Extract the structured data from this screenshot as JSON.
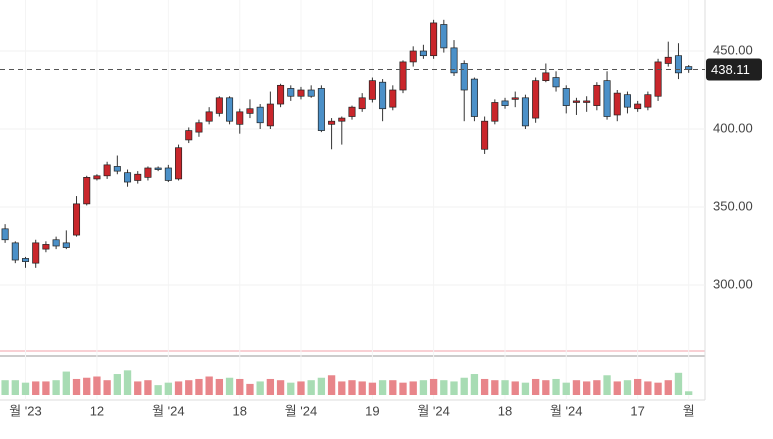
{
  "chart_data": {
    "type": "candlestick",
    "x": [
      0,
      1,
      2,
      3,
      4,
      5,
      6,
      7,
      8,
      9,
      10,
      11,
      12,
      13,
      14,
      15,
      16,
      17,
      18,
      19,
      20,
      21,
      22,
      23,
      24,
      25,
      26,
      27,
      28,
      29,
      30,
      31,
      32,
      33,
      34,
      35,
      36,
      37,
      38,
      39,
      40,
      41,
      42,
      43,
      44,
      45,
      46,
      47,
      48,
      49,
      50,
      51,
      52,
      53,
      54,
      55,
      56,
      57,
      58,
      59,
      60,
      61,
      62,
      63,
      64,
      65,
      66,
      67
    ],
    "open": [
      336,
      327,
      317,
      314,
      323,
      329,
      327,
      332,
      352,
      368,
      370,
      376,
      372,
      367,
      369,
      375,
      375,
      368,
      393,
      398,
      405,
      410,
      420,
      403,
      410,
      414,
      402,
      416,
      426,
      421,
      425,
      426,
      403,
      405,
      408,
      413,
      419,
      430,
      414,
      425,
      443,
      450,
      447,
      467,
      452,
      442,
      432,
      387,
      405,
      418,
      419,
      420,
      407,
      431,
      433,
      426,
      417,
      417,
      415,
      431,
      409,
      422,
      413,
      414,
      421,
      442,
      447,
      440
    ],
    "high": [
      339,
      328,
      318,
      329,
      328,
      331,
      335,
      357,
      370,
      371,
      379,
      383,
      374,
      373,
      376,
      376,
      377,
      390,
      401,
      406,
      414,
      421,
      421,
      413,
      419,
      416,
      424,
      429,
      428,
      427,
      428,
      428,
      407,
      408,
      415,
      423,
      433,
      432,
      428,
      444,
      453,
      454,
      470,
      470,
      457,
      444,
      433,
      408,
      419,
      420,
      424,
      422,
      433,
      442,
      437,
      428,
      420,
      421,
      430,
      437,
      425,
      424,
      418,
      424,
      445,
      456,
      455,
      441
    ],
    "low": [
      327,
      314,
      311,
      311,
      321,
      323,
      323,
      331,
      351,
      367,
      368,
      371,
      363,
      365,
      367,
      373,
      366,
      367,
      391,
      395,
      403,
      408,
      403,
      397,
      407,
      400,
      400,
      414,
      418,
      419,
      420,
      398,
      387,
      390,
      406,
      411,
      417,
      405,
      412,
      423,
      440,
      445,
      445,
      449,
      434,
      405,
      405,
      384,
      403,
      413,
      414,
      400,
      404,
      430,
      424,
      410,
      409,
      411,
      412,
      406,
      405,
      410,
      411,
      412,
      418,
      440,
      432,
      436
    ],
    "close": [
      329,
      316,
      315,
      327,
      326,
      325,
      324,
      352,
      369,
      370,
      377,
      373,
      366,
      371,
      375,
      374,
      367,
      388,
      399,
      404,
      411,
      420,
      405,
      411,
      413,
      404,
      416,
      428,
      421,
      425,
      421,
      399,
      405,
      407,
      414,
      420,
      431,
      413,
      425,
      443,
      450,
      447,
      468,
      452,
      436,
      425,
      408,
      405,
      417,
      415,
      420,
      402,
      431,
      436,
      427,
      415,
      418,
      418,
      428,
      408,
      423,
      414,
      416,
      422,
      443,
      446,
      436,
      438.11
    ],
    "volume": [
      12,
      12,
      10,
      11,
      11,
      12,
      19,
      13,
      14,
      15,
      12,
      17,
      20,
      11,
      12,
      8,
      10,
      11,
      12,
      13,
      15,
      13,
      14,
      13,
      9,
      11,
      13,
      12,
      10,
      11,
      12,
      14,
      16,
      11,
      12,
      11,
      10,
      12,
      12,
      10,
      11,
      12,
      13,
      12,
      11,
      14,
      17,
      13,
      12,
      12,
      11,
      10,
      13,
      12,
      13,
      10,
      12,
      11,
      12,
      16,
      11,
      12,
      13,
      11,
      10,
      12,
      18,
      3
    ],
    "up_color": "#c9262b",
    "down_color": "#4b90c8",
    "volume_up_color": "#e8858a",
    "volume_down_color": "#a8dcb4",
    "last_price": 438.11,
    "xlim": [
      -0.5,
      68.6
    ],
    "xticks": [
      {
        "value": 2,
        "label": "월 '23"
      },
      {
        "value": 9,
        "label": "12"
      },
      {
        "value": 16,
        "label": "월 '24"
      },
      {
        "value": 23,
        "label": "18"
      },
      {
        "value": 29,
        "label": "월 '24"
      },
      {
        "value": 36,
        "label": "19"
      },
      {
        "value": 42,
        "label": "월 '24"
      },
      {
        "value": 49,
        "label": "18"
      },
      {
        "value": 55,
        "label": "월 '24"
      },
      {
        "value": 62,
        "label": "17"
      },
      {
        "value": 67,
        "label": "월"
      }
    ],
    "ylim": [
      259.6,
      482.7
    ],
    "yticks": [
      {
        "value": 300,
        "label": "300.00"
      },
      {
        "value": 350,
        "label": "350.00"
      },
      {
        "value": 400,
        "label": "400.00"
      },
      {
        "value": 450,
        "label": "450.00"
      }
    ],
    "volume_lim": [
      0,
      30
    ],
    "grid": true
  }
}
